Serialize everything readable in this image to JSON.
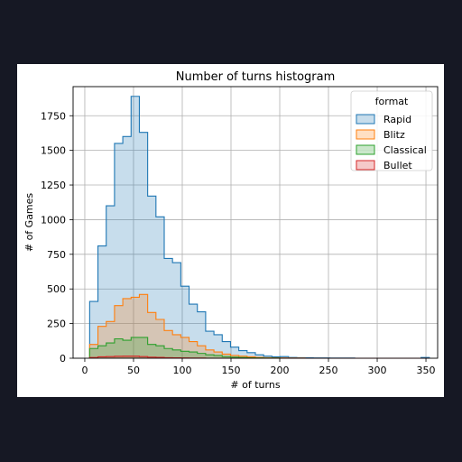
{
  "chart_data": {
    "type": "histogram",
    "title": "Number of turns histogram",
    "xlabel": "# of turns",
    "ylabel": "# of Games",
    "xlim": [
      -12,
      362
    ],
    "ylim": [
      0,
      1960
    ],
    "xticks": [
      0,
      50,
      100,
      150,
      200,
      250,
      300,
      350
    ],
    "yticks": [
      0,
      250,
      500,
      750,
      1000,
      1250,
      1500,
      1750
    ],
    "grid": true,
    "legend": {
      "title": "format",
      "placement": "top-right"
    },
    "bin_edges": [
      5,
      13.5,
      22,
      30.5,
      39,
      47.5,
      56,
      64.5,
      73,
      81.5,
      90,
      98.5,
      107,
      115.5,
      124,
      132.5,
      141,
      149.5,
      158,
      166.5,
      175,
      183.5,
      192,
      200.5,
      209,
      217.5,
      226,
      234.5,
      243,
      251.5,
      260,
      268.5,
      277,
      285.5,
      294,
      302.5,
      311,
      319.5,
      328,
      336.5,
      345,
      353.5
    ],
    "series": [
      {
        "name": "Rapid",
        "color": "#1f77b4",
        "counts": [
          410,
          810,
          1100,
          1550,
          1600,
          1890,
          1630,
          1170,
          1020,
          720,
          690,
          520,
          390,
          335,
          195,
          170,
          120,
          80,
          55,
          40,
          25,
          15,
          10,
          12,
          5,
          4,
          3,
          2,
          2,
          1,
          1,
          1,
          0,
          0,
          0,
          0,
          0,
          0,
          0,
          0,
          5
        ]
      },
      {
        "name": "Blitz",
        "color": "#ff7f0e",
        "counts": [
          100,
          230,
          265,
          380,
          430,
          440,
          460,
          330,
          280,
          200,
          170,
          150,
          120,
          90,
          60,
          45,
          30,
          20,
          15,
          10,
          6,
          4,
          3,
          2,
          1,
          1,
          0,
          0,
          0,
          0,
          0,
          0,
          0,
          0,
          0,
          0,
          0,
          0,
          0,
          0,
          0
        ]
      },
      {
        "name": "Classical",
        "color": "#2ca02c",
        "counts": [
          70,
          90,
          110,
          140,
          130,
          150,
          150,
          100,
          90,
          70,
          60,
          50,
          45,
          35,
          25,
          20,
          12,
          8,
          5,
          3,
          2,
          1,
          1,
          0,
          0,
          0,
          0,
          0,
          0,
          0,
          0,
          0,
          0,
          0,
          0,
          0,
          0,
          0,
          0,
          0,
          0
        ]
      },
      {
        "name": "Bullet",
        "color": "#d62728",
        "counts": [
          5,
          10,
          12,
          14,
          15,
          15,
          12,
          8,
          6,
          4,
          3,
          2,
          1,
          1,
          0,
          0,
          0,
          0,
          0,
          0,
          0,
          0,
          0,
          0,
          0,
          0,
          0,
          0,
          0,
          0,
          0,
          0,
          0,
          0,
          0,
          0,
          0,
          0,
          0,
          0,
          0
        ]
      }
    ]
  }
}
